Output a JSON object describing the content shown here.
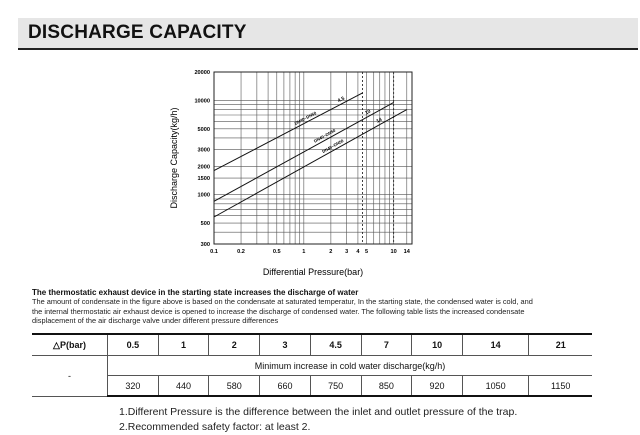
{
  "page": {
    "title": "DISCHARGE CAPACITY"
  },
  "chart_data": {
    "type": "line",
    "title": "",
    "xlabel": "Differential Pressure(bar)",
    "ylabel": "Discharge Capacity(kg/h)",
    "xscale": "log",
    "yscale": "log",
    "xlim": [
      0.1,
      16
    ],
    "ylim": [
      300,
      20000
    ],
    "grid": true,
    "xticks": [
      0.1,
      0.2,
      0.5,
      1,
      2,
      3,
      4,
      5,
      10,
      14
    ],
    "xtick_labels": [
      "0.1",
      "0.2",
      "0.5",
      "1",
      "2",
      "3",
      "4",
      "5",
      "10",
      "14"
    ],
    "xgrid": [
      0.1,
      0.2,
      0.3,
      0.4,
      0.5,
      0.6,
      0.7,
      0.8,
      0.9,
      1,
      2,
      3,
      4,
      5,
      6,
      7,
      8,
      9,
      10,
      14
    ],
    "yticks": [
      300,
      500,
      1000,
      1500,
      2000,
      3000,
      5000,
      10000,
      20000
    ],
    "ytick_labels": [
      "300",
      "500",
      "1000",
      "1500",
      "2000",
      "3000",
      "5000",
      "10000",
      "20000"
    ],
    "ygrid": [
      300,
      400,
      500,
      600,
      700,
      800,
      900,
      1000,
      1500,
      2000,
      3000,
      4000,
      5000,
      6000,
      7000,
      8000,
      9000,
      10000,
      20000
    ],
    "dashed_x": [
      4.5,
      10
    ],
    "series": [
      {
        "name": "4.5",
        "model": "DN40~DN50",
        "x": [
          0.1,
          4.5
        ],
        "values": [
          1800,
          12000
        ]
      },
      {
        "name": "10",
        "model": "DN40~DN50",
        "x": [
          0.1,
          10
        ],
        "values": [
          850,
          9500
        ]
      },
      {
        "name": "14",
        "model": "DN40~DN50",
        "x": [
          0.1,
          14
        ],
        "values": [
          580,
          8000
        ]
      }
    ]
  },
  "description": {
    "title": "The thermostatic exhaust device in the starting state increases the discharge of  water",
    "lines": [
      "The amount of condensate in the figure above is based on the condensate at saturated temperatur, In the starting state, the condensed water is cold, and",
      "the internal thermostatic air exhaust device is opened to increase the discharge of condensed water. The following table lists the increased condensate",
      "displacement of the air discharge valve under different pressure differences"
    ]
  },
  "table": {
    "header_label": "△P(bar)",
    "pressures": [
      "0.5",
      "1",
      "2",
      "3",
      "4.5",
      "7",
      "10",
      "14",
      "21"
    ],
    "row_label": "-",
    "subheader": "Minimum increase in cold water discharge(kg/h)",
    "values": [
      "320",
      "440",
      "580",
      "660",
      "750",
      "850",
      "920",
      "1050",
      "1150"
    ]
  },
  "notes": [
    "1.Different Pressure is the difference between the inlet and outlet pressure of the trap.",
    "2.Recommended safety factor: at least 2."
  ]
}
